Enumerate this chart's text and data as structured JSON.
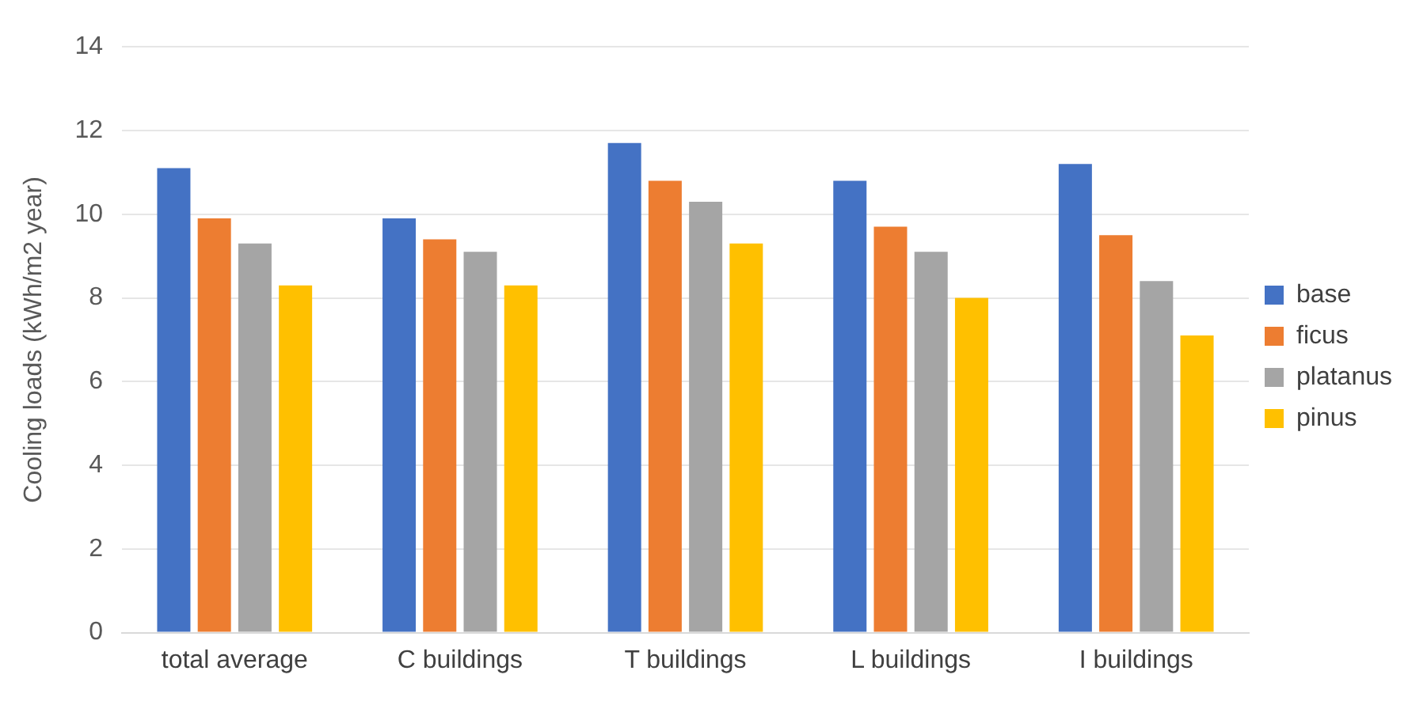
{
  "chart_data": {
    "type": "bar",
    "ylabel": "Cooling loads (kWh/m2 year)",
    "categories": [
      "total average",
      "C buildings",
      "T buildings",
      "L buildings",
      "I buildings"
    ],
    "series": [
      {
        "name": "base",
        "color": "#4472c4",
        "values": [
          11.1,
          9.9,
          11.7,
          10.8,
          11.2
        ]
      },
      {
        "name": "ficus",
        "color": "#ed7d31",
        "values": [
          9.9,
          9.4,
          10.8,
          9.7,
          9.5
        ]
      },
      {
        "name": "platanus",
        "color": "#a5a5a5",
        "values": [
          9.3,
          9.1,
          10.3,
          9.1,
          8.4
        ]
      },
      {
        "name": "pinus",
        "color": "#ffc000",
        "values": [
          8.3,
          8.3,
          9.3,
          8.0,
          7.1
        ]
      }
    ],
    "ylim": [
      0,
      14
    ],
    "yticks": [
      0,
      2,
      4,
      6,
      8,
      10,
      12,
      14
    ],
    "grid": "y",
    "legend": "right"
  }
}
